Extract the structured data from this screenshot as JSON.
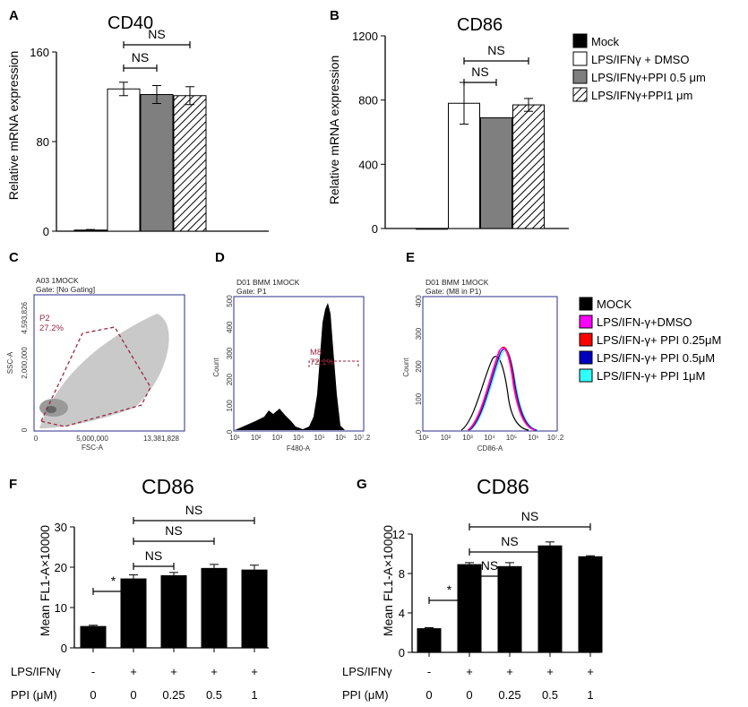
{
  "panel_labels": {
    "a": "A",
    "b": "B",
    "c": "C",
    "d": "D",
    "e": "E",
    "f": "F",
    "g": "G"
  },
  "colors": {
    "white": "#ffffff",
    "gray": "#7f7f7f",
    "black": "#000000",
    "gate": "#9b2740",
    "frame": "#2d2d8f"
  },
  "chart_data": [
    {
      "id": "A",
      "type": "bar",
      "title": "CD40",
      "ylabel": "Relative mRNA expression",
      "ylim": [
        0,
        160
      ],
      "yticks": [
        "0",
        "80",
        "160"
      ],
      "groups": [
        "Mock",
        "LPS/IFNγ + DMSO",
        "LPS/IFNγ+PPI 0.5 μm",
        "LPS/IFNγ+PPI1 μm"
      ],
      "values": [
        1,
        127,
        122,
        121
      ],
      "errors": [
        0.5,
        6,
        8,
        8
      ],
      "comparisons": [
        {
          "from": 1,
          "to": 2,
          "label": "NS"
        },
        {
          "from": 1,
          "to": 3,
          "label": "NS"
        }
      ]
    },
    {
      "id": "B",
      "type": "bar",
      "title": "CD86",
      "ylabel": "Relative mRNA expression",
      "ylim": [
        0,
        1200
      ],
      "yticks": [
        "0",
        "400",
        "800",
        "1200"
      ],
      "groups": [
        "Mock",
        "LPS/IFNγ + DMSO",
        "LPS/IFNγ+PPI 0.5 μm",
        "LPS/IFNγ+PPI1 μm"
      ],
      "values": [
        0,
        780,
        690,
        770
      ],
      "errors": [
        0,
        130,
        0,
        40
      ],
      "comparisons": [
        {
          "from": 1,
          "to": 2,
          "label": "NS"
        },
        {
          "from": 1,
          "to": 3,
          "label": "NS"
        }
      ]
    },
    {
      "id": "F",
      "type": "bar",
      "title": "CD86",
      "ylabel": "Mean FL1-A×10000",
      "ylim": [
        0,
        30
      ],
      "yticks": [
        "0",
        "10",
        "20",
        "30"
      ],
      "categories": [
        "0",
        "0",
        "0.25",
        "0.5",
        "1"
      ],
      "values": [
        5.3,
        17.1,
        17.9,
        19.7,
        19.3
      ],
      "errors": [
        0.3,
        1.0,
        0.8,
        1.0,
        1.2
      ],
      "comparisons": [
        {
          "from": 0,
          "to": 1,
          "label": "*"
        },
        {
          "from": 1,
          "to": 2,
          "label": "NS"
        },
        {
          "from": 1,
          "to": 3,
          "label": "NS"
        },
        {
          "from": 1,
          "to": 4,
          "label": "NS"
        }
      ]
    },
    {
      "id": "G",
      "type": "bar",
      "title": "CD86",
      "ylabel": "Mean FL1-A×10000",
      "ylim": [
        0,
        12
      ],
      "yticks": [
        "0",
        "4",
        "8",
        "12"
      ],
      "categories": [
        "0",
        "0",
        "0.25",
        "0.5",
        "1"
      ],
      "values": [
        2.4,
        8.9,
        8.7,
        10.8,
        9.7
      ],
      "errors": [
        0.1,
        0.2,
        0.4,
        0.4,
        0.1
      ],
      "comparisons": [
        {
          "from": 0,
          "to": 1,
          "label": "*"
        },
        {
          "from": 1,
          "to": 2,
          "label": "NS"
        },
        {
          "from": 1,
          "to": 3,
          "label": "NS"
        },
        {
          "from": 1,
          "to": 4,
          "label": "NS"
        }
      ]
    }
  ],
  "legend_ab": {
    "items": [
      {
        "label": "Mock",
        "fill": "black"
      },
      {
        "label": "LPS/IFNγ + DMSO",
        "fill": "white"
      },
      {
        "label": "LPS/IFNγ+PPI 0.5 μm",
        "fill": "gray"
      },
      {
        "label": "LPS/IFNγ+PPI1 μm",
        "fill": "hatch"
      }
    ]
  },
  "legend_cde": {
    "items": [
      {
        "label": "MOCK",
        "color": "#000000"
      },
      {
        "label": "LPS/IFN-γ+DMSO",
        "color": "#ff00ff"
      },
      {
        "label": "LPS/IFN-γ+ PPI 0.25μM",
        "color": "#ff0000"
      },
      {
        "label": "LPS/IFN-γ+ PPI 0.5μM",
        "color": "#0000c0"
      },
      {
        "label": "LPS/IFN-γ+ PPI 1μM",
        "color": "#30ffff"
      }
    ]
  },
  "flow": {
    "c": {
      "sample": "A03 1MOCK",
      "gate": "Gate: [No Gating]",
      "ylabel": "SSC-A",
      "xlabel": "FSC-A",
      "yticks": [
        "4,593,826",
        "2,000,000",
        "0"
      ],
      "xticks": [
        "0",
        "5,000,000",
        "13,381,828"
      ],
      "gate_name": "P2",
      "gate_pct": "27.2%"
    },
    "d": {
      "sample": "D01 BMM 1MOCK",
      "gate": "Gate: P1",
      "ylabel": "Count",
      "xlabel": "F480-A",
      "yticks": [
        "0",
        "100",
        "200",
        "300",
        "400",
        "500"
      ],
      "xticks": [
        "10¹",
        "10²",
        "10³",
        "10⁴",
        "10⁵",
        "10⁶",
        "10⁷.2"
      ],
      "gate_name": "M8",
      "gate_pct": "72.1%"
    },
    "e": {
      "sample": "D01 BMM 1MOCK",
      "gate": "Gate: (M8 in P1)",
      "ylabel": "Count",
      "xlabel": "CD86-A",
      "yticks": [
        "0",
        "100",
        "200",
        "300",
        "400"
      ],
      "xticks": [
        "10¹",
        "10²",
        "10³",
        "10⁴",
        "10⁵",
        "10⁶",
        "10⁷.2"
      ]
    }
  },
  "row_labels": {
    "f": {
      "lps": "LPS/IFNγ",
      "ppi": "PPI (μM)",
      "lps_values": [
        "-",
        "+",
        "+",
        "+",
        "+"
      ]
    },
    "g": {
      "lps": "LPS/IFNγ",
      "ppi": "PPI (μM)",
      "lps_values": [
        "-",
        "+",
        "+",
        "+",
        "+"
      ]
    }
  }
}
